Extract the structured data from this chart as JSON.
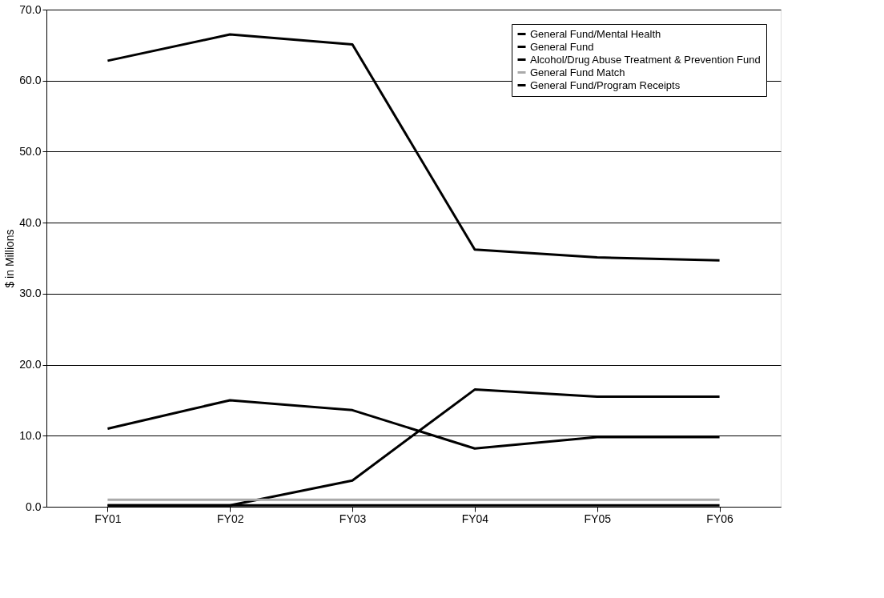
{
  "chart_data": {
    "type": "line",
    "ylabel": "$ in Millions",
    "categories": [
      "FY01",
      "FY02",
      "FY03",
      "FY04",
      "FY05",
      "FY06"
    ],
    "series": [
      {
        "name": "General Fund/Mental Health",
        "color": "#000000",
        "values": [
          62.8,
          66.5,
          65.1,
          36.2,
          35.1,
          34.7
        ]
      },
      {
        "name": "General Fund",
        "color": "#000000",
        "values": [
          11.0,
          15.0,
          13.6,
          8.2,
          9.8,
          9.8
        ]
      },
      {
        "name": "Alcohol/Drug Abuse Treatment & Prevention Fund",
        "color": "#000000",
        "values": [
          0.2,
          0.2,
          3.7,
          16.5,
          15.5,
          15.5
        ]
      },
      {
        "name": "General Fund Match",
        "color": "#aaaaaa",
        "values": [
          1.0,
          1.0,
          1.0,
          1.0,
          1.0,
          1.0
        ]
      },
      {
        "name": "General Fund/Program Receipts",
        "color": "#000000",
        "values": [
          0.2,
          0.2,
          0.2,
          0.2,
          0.2,
          0.2
        ]
      }
    ],
    "ylim": [
      0,
      70
    ],
    "yticks": [
      {
        "value": 0,
        "label": "0.0"
      },
      {
        "value": 10,
        "label": "10.0"
      },
      {
        "value": 20,
        "label": "20.0"
      },
      {
        "value": 30,
        "label": "30.0"
      },
      {
        "value": 40,
        "label": "40.0"
      },
      {
        "value": 50,
        "label": "50.0"
      },
      {
        "value": 60,
        "label": "60.0"
      },
      {
        "value": 70,
        "label": "70.0"
      }
    ],
    "grid": "y",
    "legend": "top right",
    "marker": "none",
    "line_style": "solid"
  }
}
